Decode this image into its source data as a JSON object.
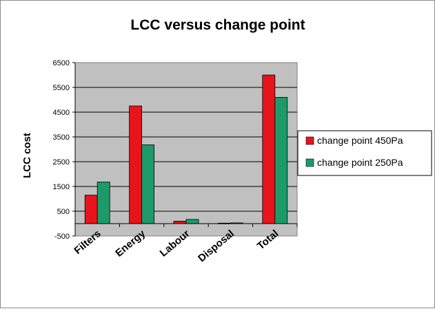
{
  "chart_data": {
    "type": "bar",
    "title": "LCC versus change point",
    "xlabel": "",
    "ylabel": "LCC cost",
    "ylim": [
      -500,
      6500
    ],
    "yticks": [
      -500,
      500,
      1500,
      2500,
      3500,
      4500,
      5500,
      6500
    ],
    "ytick_labels": [
      "-500",
      "500",
      "1500",
      "2500",
      "3500",
      "4500",
      "5500",
      "6500"
    ],
    "categories": [
      "Filters",
      "Energy",
      "Labour",
      "Disposal",
      "Total"
    ],
    "series": [
      {
        "name": "change point 450Pa",
        "color": "#e8141c",
        "values": [
          1150,
          4750,
          100,
          20,
          6000
        ]
      },
      {
        "name": "change point 250Pa",
        "color": "#1c9a68",
        "values": [
          1680,
          3180,
          170,
          30,
          5100
        ]
      }
    ],
    "grid": true,
    "legend_position": "right",
    "plot_background": "#c0c0c0"
  }
}
